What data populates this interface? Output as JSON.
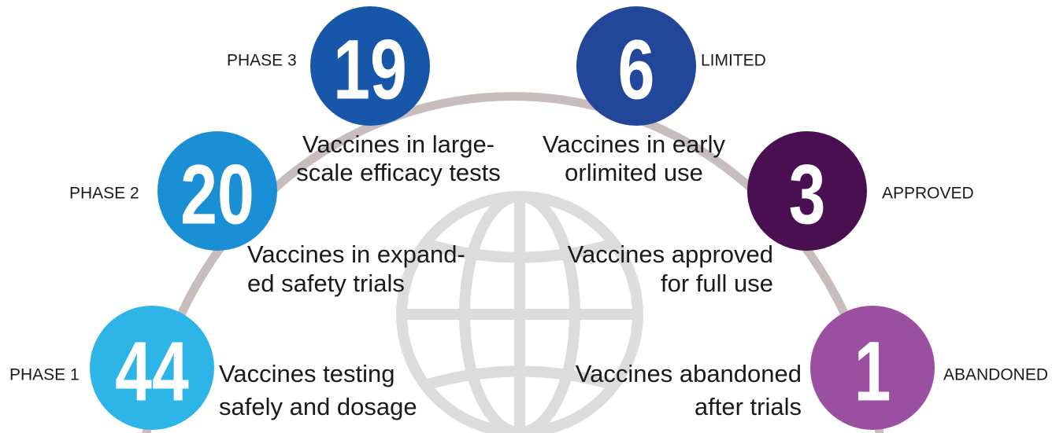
{
  "stages": [
    {
      "label": "PHASE 1",
      "count": 44,
      "description": [
        "Vaccines testing",
        "safely and dosage"
      ]
    },
    {
      "label": "PHASE 2",
      "count": 20,
      "description": [
        "Vaccines in expand-",
        "ed safety trials"
      ]
    },
    {
      "label": "PHASE 3",
      "count": 19,
      "description": [
        "Vaccines in large-",
        "scale efficacy tests"
      ]
    },
    {
      "label": "LIMITED",
      "count": 6,
      "description": [
        "Vaccines in early",
        "orlimited use"
      ]
    },
    {
      "label": "APPROVED",
      "count": 3,
      "description": [
        "Vaccines approved",
        "for full use"
      ]
    },
    {
      "label": "ABANDONED",
      "count": 1,
      "description": [
        "Vaccines abandoned",
        "after trials"
      ]
    }
  ]
}
